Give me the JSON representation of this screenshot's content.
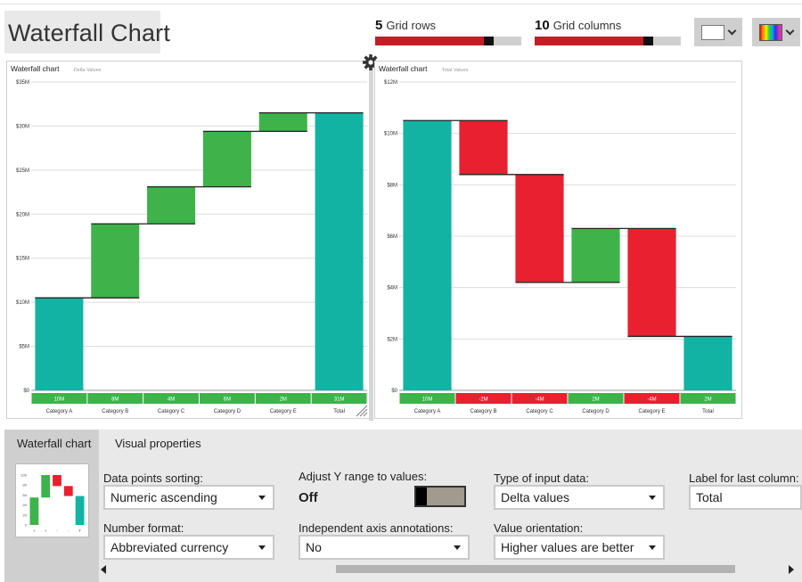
{
  "app": {
    "title": "Waterfall Chart"
  },
  "grid_controls": {
    "rows": {
      "value": "5",
      "label": "Grid rows",
      "fill_fraction": 0.8
    },
    "columns": {
      "value": "10",
      "label": "Grid columns",
      "fill_fraction": 0.8
    }
  },
  "toolbar": {
    "background_swatch_icon": "white-swatch-icon",
    "palette_icon": "rainbow-palette-icon",
    "chevron_icon": "chevron-down-icon",
    "settings_icon": "gear-icon"
  },
  "chart_data": [
    {
      "type": "waterfall",
      "title": "Waterfall chart",
      "subtitle": "Delta Values",
      "categories": [
        "Category A",
        "Category B",
        "Category C",
        "Category D",
        "Category E",
        "Total"
      ],
      "values": [
        10.5,
        8.4,
        4.2,
        6.3,
        2.1,
        31.5
      ],
      "labels": [
        "10M",
        "8M",
        "4M",
        "6M",
        "2M",
        "31M"
      ],
      "is_total": [
        false,
        false,
        false,
        false,
        false,
        true
      ],
      "ylim": [
        0,
        35
      ],
      "yticks": [
        "$0",
        "$5M",
        "$10M",
        "$15M",
        "$20M",
        "$25M",
        "$30M",
        "$35M"
      ],
      "grid": true,
      "colors": {
        "positive": "#3db34a",
        "negative": "#e8202f",
        "total": "#13b3a4",
        "label_bg": "#3db34a"
      }
    },
    {
      "type": "waterfall",
      "title": "Waterfall chart",
      "subtitle": "Total Values",
      "categories": [
        "Category A",
        "Category B",
        "Category C",
        "Category D",
        "Category E",
        "Total"
      ],
      "values": [
        10.5,
        -2.1,
        -4.2,
        2.1,
        -4.2,
        2.1
      ],
      "labels": [
        "10M",
        "-2M",
        "-4M",
        "2M",
        "-4M",
        "2M"
      ],
      "is_total": [
        false,
        false,
        false,
        false,
        false,
        true
      ],
      "ylim": [
        0,
        12
      ],
      "yticks": [
        "$0",
        "$2M",
        "$4M",
        "$6M",
        "$8M",
        "$10M",
        "$12M"
      ],
      "grid": true,
      "colors": {
        "positive": "#3db34a",
        "negative": "#e8202f",
        "total": "#13b3a4",
        "label_pos": "#3db34a",
        "label_neg": "#e8202f"
      }
    }
  ],
  "properties": {
    "tabs": [
      {
        "label": "Waterfall chart",
        "active": true
      },
      {
        "label": "Visual properties",
        "active": false
      }
    ],
    "fields": {
      "sorting": {
        "label": "Data points sorting:",
        "value": "Numeric ascending"
      },
      "number_format": {
        "label": "Number format:",
        "value": "Abbreviated currency"
      },
      "adjust_y": {
        "label": "Adjust Y range to values:",
        "value": "Off"
      },
      "axis_annotations": {
        "label": "Independent axis annotations:",
        "value": "No"
      },
      "input_type": {
        "label": "Type of input data:",
        "value": "Delta values"
      },
      "orientation": {
        "label": "Value orientation:",
        "value": "Higher values are better"
      },
      "last_label": {
        "label": "Label for last column:",
        "value": "Total"
      }
    },
    "thumbnail": {
      "yticks": [
        "100",
        "80",
        "60",
        "40",
        "20",
        "0"
      ],
      "xticks": [
        "+",
        "+",
        "-",
        "-",
        "T"
      ]
    }
  }
}
